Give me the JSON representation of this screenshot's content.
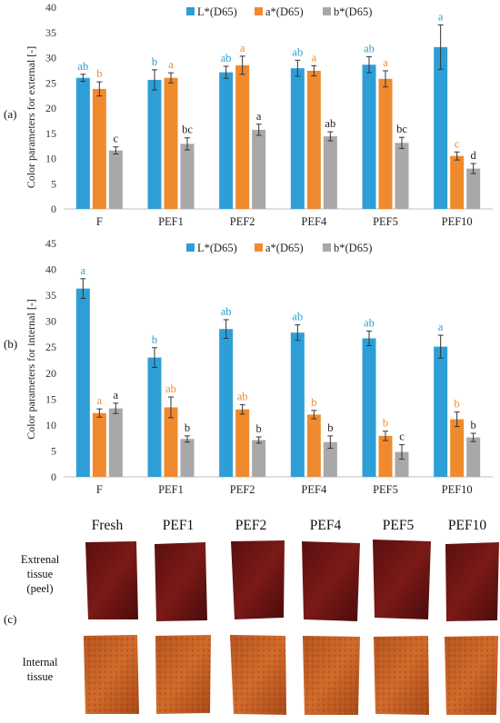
{
  "colors": {
    "L": "#2e9fd6",
    "a": "#f08a2e",
    "b": "#a8a8a8"
  },
  "chart_data": [
    {
      "type": "bar",
      "panel_label": "(a)",
      "ylabel": "Color parameters for external [-]",
      "ylim": [
        0,
        40
      ],
      "yticks": [
        0,
        5,
        10,
        15,
        20,
        25,
        30,
        35,
        40
      ],
      "legend_position": "top-center",
      "categories": [
        "F",
        "PEF1",
        "PEF2",
        "PEF4",
        "PEF5",
        "PEF10"
      ],
      "series": [
        {
          "name": "L*(D65)",
          "color": "#2e9fd6",
          "values": [
            26.0,
            25.6,
            27.1,
            27.9,
            28.6,
            32.1
          ],
          "errors": [
            0.7,
            2.0,
            1.2,
            1.6,
            1.6,
            4.4
          ],
          "letters": [
            "ab",
            "b",
            "ab",
            "ab",
            "ab",
            "a"
          ]
        },
        {
          "name": "a*(D65)",
          "color": "#f08a2e",
          "values": [
            23.8,
            26.0,
            28.5,
            27.4,
            25.8,
            10.5
          ],
          "errors": [
            1.4,
            1.0,
            1.8,
            1.0,
            1.6,
            0.8
          ],
          "letters": [
            "b",
            "a",
            "a",
            "a",
            "a",
            "c"
          ]
        },
        {
          "name": "b*(D65)",
          "color": "#a8a8a8",
          "values": [
            11.6,
            12.9,
            15.7,
            14.4,
            13.1,
            8.0
          ],
          "errors": [
            0.7,
            1.2,
            1.1,
            0.9,
            1.1,
            1.0
          ],
          "letters": [
            "c",
            "bc",
            "a",
            "ab",
            "bc",
            "d"
          ]
        }
      ]
    },
    {
      "type": "bar",
      "panel_label": "(b)",
      "ylabel": "Color parameters for internal [-]",
      "ylim": [
        0,
        45
      ],
      "yticks": [
        0,
        5,
        10,
        15,
        20,
        25,
        30,
        35,
        40,
        45
      ],
      "legend_position": "top-center",
      "categories": [
        "F",
        "PEF1",
        "PEF2",
        "PEF4",
        "PEF5",
        "PEF10"
      ],
      "series": [
        {
          "name": "L*(D65)",
          "color": "#2e9fd6",
          "values": [
            36.3,
            23.0,
            28.5,
            27.8,
            26.7,
            25.1
          ],
          "errors": [
            1.9,
            1.9,
            1.8,
            1.5,
            1.4,
            2.2
          ],
          "letters": [
            "a",
            "b",
            "ab",
            "ab",
            "ab",
            "a"
          ]
        },
        {
          "name": "a*(D65)",
          "color": "#f08a2e",
          "values": [
            12.3,
            13.4,
            13.0,
            12.0,
            7.9,
            11.1
          ],
          "errors": [
            0.8,
            2.0,
            0.9,
            0.8,
            0.9,
            1.4
          ],
          "letters": [
            "a",
            "ab",
            "ab",
            "b",
            "b",
            "b"
          ]
        },
        {
          "name": "b*(D65)",
          "color": "#a8a8a8",
          "values": [
            13.2,
            7.3,
            7.1,
            6.7,
            4.8,
            7.6
          ],
          "errors": [
            1.0,
            0.6,
            0.6,
            1.2,
            1.4,
            0.8
          ],
          "letters": [
            "a",
            "b",
            "b",
            "b",
            "c",
            "b"
          ]
        }
      ]
    }
  ],
  "photos": {
    "panel_label": "(c)",
    "columns": [
      "Fresh",
      "PEF1",
      "PEF2",
      "PEF4",
      "PEF5",
      "PEF10"
    ],
    "rows": [
      {
        "label_lines": [
          "Extrenal",
          "tissue",
          "(peel)"
        ],
        "kind": "peel"
      },
      {
        "label_lines": [
          "Internal",
          "tissue"
        ],
        "kind": "internal"
      }
    ]
  }
}
